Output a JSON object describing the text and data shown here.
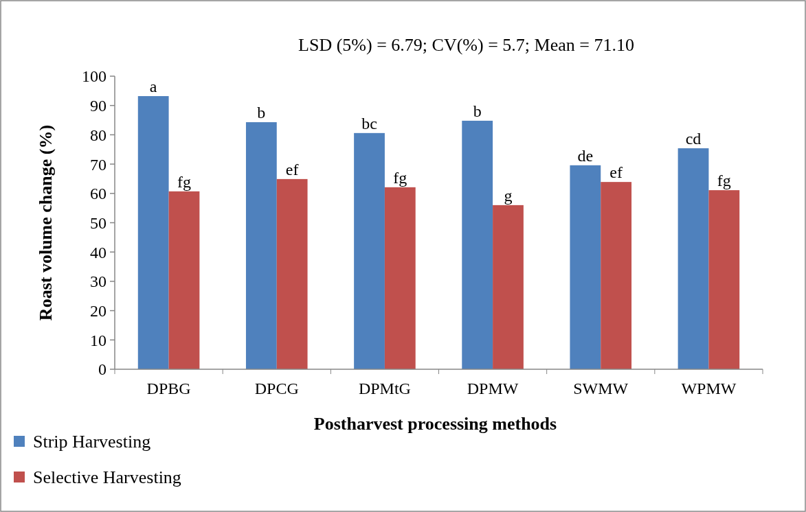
{
  "chart_data": {
    "type": "bar",
    "title": "LSD (5%) = 6.79; CV(%) = 5.7; Mean = 71.10",
    "xlabel": "Postharvest processing methods",
    "ylabel": "Roast volume change (%)",
    "categories": [
      "DPBG",
      "DPCG",
      "DPMtG",
      "DPMW",
      "SWMW",
      "WPMW"
    ],
    "series": [
      {
        "name": "Strip Harvesting",
        "color": "#4f81bd",
        "values": [
          93.2,
          84.3,
          80.6,
          84.8,
          69.6,
          75.4
        ],
        "value_labels": [
          "a",
          "b",
          "bc",
          "b",
          "de",
          "cd"
        ]
      },
      {
        "name": "Selective Harvesting",
        "color": "#c0504d",
        "values": [
          60.7,
          64.9,
          62.1,
          56.0,
          63.9,
          61.1
        ],
        "value_labels": [
          "fg",
          "ef",
          "fg",
          "g",
          "ef",
          "fg"
        ]
      }
    ],
    "ylim": [
      0,
      100
    ],
    "yticks": [
      0,
      10,
      20,
      30,
      40,
      50,
      60,
      70,
      80,
      90,
      100
    ],
    "grid": false,
    "legend": "bottom left"
  }
}
